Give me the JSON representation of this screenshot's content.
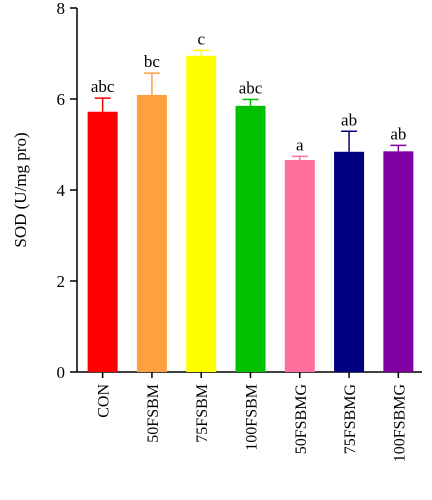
{
  "chart_data": {
    "type": "bar",
    "title": "",
    "xlabel": "",
    "ylabel": "SOD (U/mg pro)",
    "ylim": [
      0,
      8
    ],
    "yticks": [
      "0",
      "2",
      "4",
      "6",
      "8"
    ],
    "grid": false,
    "categories": [
      "CON",
      "50FSBM",
      "75FSBM",
      "100FSBM",
      "50FSBMG",
      "75FSBMG",
      "100FSBMG"
    ],
    "values": [
      5.72,
      6.09,
      6.95,
      5.85,
      4.66,
      4.84,
      4.85
    ],
    "error": [
      0.3,
      0.48,
      0.12,
      0.14,
      0.08,
      0.45,
      0.13
    ],
    "significance": [
      "abc",
      "bc",
      "c",
      "abc",
      "a",
      "ab",
      "ab"
    ],
    "colors": [
      "#ff0000",
      "#ffa040",
      "#ffff00",
      "#00c000",
      "#ff6f9c",
      "#000080",
      "#7f00a0"
    ]
  }
}
